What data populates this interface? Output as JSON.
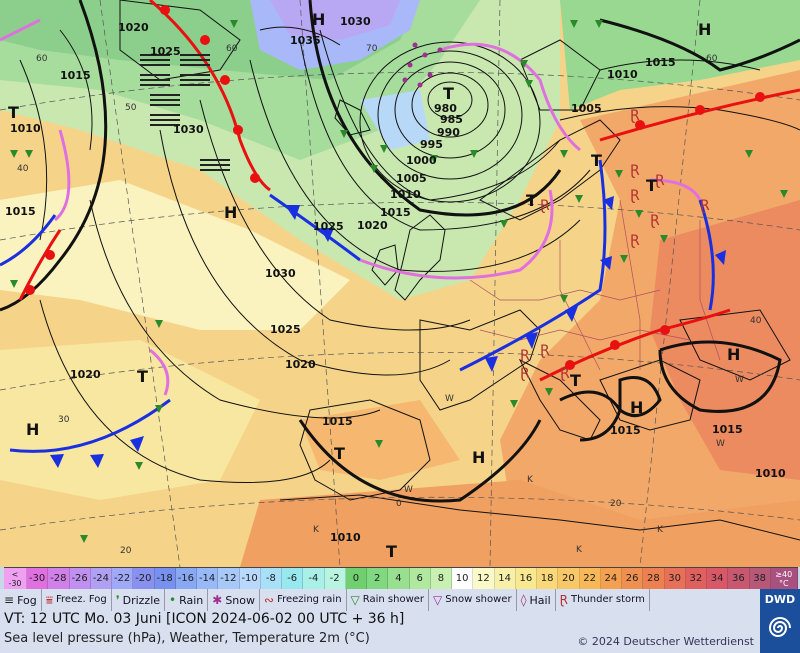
{
  "map": {
    "pressure_labels": [
      {
        "text": "1020"
      },
      {
        "text": "1025"
      },
      {
        "text": "1015"
      },
      {
        "text": "1035"
      },
      {
        "text": "1030"
      },
      {
        "text": "1010"
      },
      {
        "text": "1005"
      },
      {
        "text": "1015"
      },
      {
        "text": "1030"
      },
      {
        "text": "980"
      },
      {
        "text": "985"
      },
      {
        "text": "990"
      },
      {
        "text": "995"
      },
      {
        "text": "1000"
      },
      {
        "text": "1005"
      },
      {
        "text": "1010"
      },
      {
        "text": "1015"
      },
      {
        "text": "1025"
      },
      {
        "text": "1020"
      },
      {
        "text": "1030"
      },
      {
        "text": "1025"
      },
      {
        "text": "1020"
      },
      {
        "text": "1020"
      },
      {
        "text": "1015"
      },
      {
        "text": "1015"
      },
      {
        "text": "1015"
      },
      {
        "text": "1010"
      },
      {
        "text": "1010"
      },
      {
        "text": "1015"
      },
      {
        "text": "1010"
      }
    ],
    "centers": [
      {
        "text": "H"
      },
      {
        "text": "H"
      },
      {
        "text": "H"
      },
      {
        "text": "H"
      },
      {
        "text": "H"
      },
      {
        "text": "H"
      },
      {
        "text": "H"
      },
      {
        "text": "T"
      },
      {
        "text": "T"
      },
      {
        "text": "T"
      },
      {
        "text": "T"
      },
      {
        "text": "T"
      },
      {
        "text": "T"
      },
      {
        "text": "T"
      },
      {
        "text": "T"
      },
      {
        "text": "T"
      }
    ],
    "temp_labels": [
      {
        "text": "60"
      },
      {
        "text": "60"
      },
      {
        "text": "70"
      },
      {
        "text": "60"
      },
      {
        "text": "50"
      },
      {
        "text": "40"
      },
      {
        "text": "40"
      },
      {
        "text": "30"
      },
      {
        "text": "20"
      },
      {
        "text": "20"
      },
      {
        "text": "0"
      },
      {
        "text": "W"
      },
      {
        "text": "W"
      },
      {
        "text": "W"
      },
      {
        "text": "W"
      },
      {
        "text": "K"
      },
      {
        "text": "K"
      },
      {
        "text": "K"
      },
      {
        "text": "K"
      }
    ]
  },
  "colorbar": {
    "first_label": "< -30",
    "last_label": "≥40 °C",
    "cells": [
      {
        "label": "-30",
        "color": "#e070e0"
      },
      {
        "label": "-28",
        "color": "#d080e8"
      },
      {
        "label": "-26",
        "color": "#c090f0"
      },
      {
        "label": "-24",
        "color": "#b0a0f4"
      },
      {
        "label": "-22",
        "color": "#a0a8f8"
      },
      {
        "label": "-20",
        "color": "#8890f0"
      },
      {
        "label": "-18",
        "color": "#7890f0"
      },
      {
        "label": "-16",
        "color": "#88a8f4"
      },
      {
        "label": "-14",
        "color": "#98b8f8"
      },
      {
        "label": "-12",
        "color": "#a8c8f8"
      },
      {
        "label": "-10",
        "color": "#b8d8fc"
      },
      {
        "label": "-8",
        "color": "#a8e0f8"
      },
      {
        "label": "-6",
        "color": "#98e8f0"
      },
      {
        "label": "-4",
        "color": "#a8f0e8"
      },
      {
        "label": "-2",
        "color": "#b8f4e0"
      },
      {
        "label": "0",
        "color": "#70d070"
      },
      {
        "label": "2",
        "color": "#80d880"
      },
      {
        "label": "4",
        "color": "#98e090"
      },
      {
        "label": "6",
        "color": "#b0e8a0"
      },
      {
        "label": "8",
        "color": "#c8f0b0"
      },
      {
        "label": "10",
        "color": "#ffffff"
      },
      {
        "label": "12",
        "color": "#fafac8"
      },
      {
        "label": "14",
        "color": "#f8f0a8"
      },
      {
        "label": "16",
        "color": "#f8e890"
      },
      {
        "label": "18",
        "color": "#f8d878"
      },
      {
        "label": "20",
        "color": "#f8c868"
      },
      {
        "label": "22",
        "color": "#f8b858"
      },
      {
        "label": "24",
        "color": "#f4a050"
      },
      {
        "label": "26",
        "color": "#f09050"
      },
      {
        "label": "28",
        "color": "#ec8050"
      },
      {
        "label": "30",
        "color": "#e87058"
      },
      {
        "label": "32",
        "color": "#e06060"
      },
      {
        "label": "34",
        "color": "#d85868"
      },
      {
        "label": "36",
        "color": "#c85870"
      },
      {
        "label": "38",
        "color": "#b85878"
      }
    ]
  },
  "legend": [
    {
      "label": "Fog",
      "icon": "fog-icon",
      "glyph": "≡",
      "color": "#222"
    },
    {
      "label": "Freez. Fog",
      "icon": "freezing-fog-icon",
      "glyph": "⩸",
      "color": "#c03030"
    },
    {
      "label": "Drizzle",
      "icon": "drizzle-icon",
      "glyph": "❜",
      "color": "#2a8a2a"
    },
    {
      "label": "Rain",
      "icon": "rain-icon",
      "glyph": "•",
      "color": "#2a8a2a"
    },
    {
      "label": "Snow",
      "icon": "snow-icon",
      "glyph": "✱",
      "color": "#a03090"
    },
    {
      "label": "Freezing rain",
      "icon": "freezing-rain-icon",
      "glyph": "∾",
      "color": "#c03030"
    },
    {
      "label": "Rain shower",
      "icon": "rain-shower-icon",
      "glyph": "▽",
      "color": "#2a8a2a"
    },
    {
      "label": "Snow shower",
      "icon": "snow-shower-icon",
      "glyph": "▽",
      "color": "#a03090"
    },
    {
      "label": "Hail",
      "icon": "hail-icon",
      "glyph": "◊",
      "color": "#a03070"
    },
    {
      "label": "Thunder storm",
      "icon": "thunderstorm-icon",
      "glyph": "Ɽ",
      "color": "#b03030"
    }
  ],
  "info": {
    "vt_line": "VT: 12 UTC Mo.  03 Juni [ICON 2024-06-02  00 UTC + 36 h]",
    "description": "Sea level pressure (hPa), Weather, Temperature 2m (°C)",
    "copyright": "© 2024 Deutscher Wetterdienst"
  },
  "logo": {
    "text": "DWD"
  }
}
